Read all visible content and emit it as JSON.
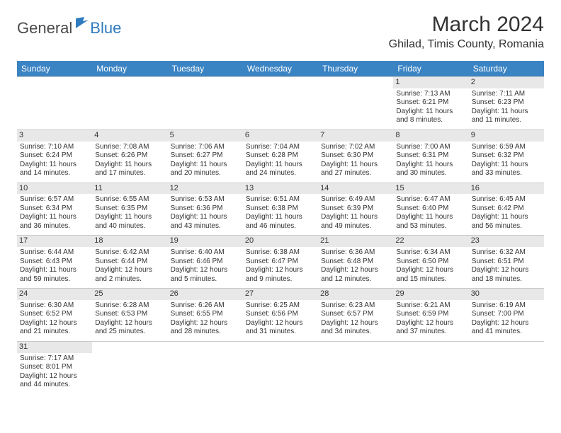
{
  "logo": {
    "part1": "General",
    "part2": "Blue"
  },
  "title": "March 2024",
  "location": "Ghilad, Timis County, Romania",
  "colors": {
    "header_bg": "#3b84c4",
    "header_fg": "#ffffff",
    "daynum_bg": "#e8e8e8",
    "border": "#c8c8c8",
    "logo_blue": "#2f7bbf",
    "logo_gray": "#4a4a4a"
  },
  "day_headers": [
    "Sunday",
    "Monday",
    "Tuesday",
    "Wednesday",
    "Thursday",
    "Friday",
    "Saturday"
  ],
  "weeks": [
    [
      {
        "n": "",
        "sr": "",
        "ss": "",
        "dl": ""
      },
      {
        "n": "",
        "sr": "",
        "ss": "",
        "dl": ""
      },
      {
        "n": "",
        "sr": "",
        "ss": "",
        "dl": ""
      },
      {
        "n": "",
        "sr": "",
        "ss": "",
        "dl": ""
      },
      {
        "n": "",
        "sr": "",
        "ss": "",
        "dl": ""
      },
      {
        "n": "1",
        "sr": "Sunrise: 7:13 AM",
        "ss": "Sunset: 6:21 PM",
        "dl": "Daylight: 11 hours and 8 minutes."
      },
      {
        "n": "2",
        "sr": "Sunrise: 7:11 AM",
        "ss": "Sunset: 6:23 PM",
        "dl": "Daylight: 11 hours and 11 minutes."
      }
    ],
    [
      {
        "n": "3",
        "sr": "Sunrise: 7:10 AM",
        "ss": "Sunset: 6:24 PM",
        "dl": "Daylight: 11 hours and 14 minutes."
      },
      {
        "n": "4",
        "sr": "Sunrise: 7:08 AM",
        "ss": "Sunset: 6:26 PM",
        "dl": "Daylight: 11 hours and 17 minutes."
      },
      {
        "n": "5",
        "sr": "Sunrise: 7:06 AM",
        "ss": "Sunset: 6:27 PM",
        "dl": "Daylight: 11 hours and 20 minutes."
      },
      {
        "n": "6",
        "sr": "Sunrise: 7:04 AM",
        "ss": "Sunset: 6:28 PM",
        "dl": "Daylight: 11 hours and 24 minutes."
      },
      {
        "n": "7",
        "sr": "Sunrise: 7:02 AM",
        "ss": "Sunset: 6:30 PM",
        "dl": "Daylight: 11 hours and 27 minutes."
      },
      {
        "n": "8",
        "sr": "Sunrise: 7:00 AM",
        "ss": "Sunset: 6:31 PM",
        "dl": "Daylight: 11 hours and 30 minutes."
      },
      {
        "n": "9",
        "sr": "Sunrise: 6:59 AM",
        "ss": "Sunset: 6:32 PM",
        "dl": "Daylight: 11 hours and 33 minutes."
      }
    ],
    [
      {
        "n": "10",
        "sr": "Sunrise: 6:57 AM",
        "ss": "Sunset: 6:34 PM",
        "dl": "Daylight: 11 hours and 36 minutes."
      },
      {
        "n": "11",
        "sr": "Sunrise: 6:55 AM",
        "ss": "Sunset: 6:35 PM",
        "dl": "Daylight: 11 hours and 40 minutes."
      },
      {
        "n": "12",
        "sr": "Sunrise: 6:53 AM",
        "ss": "Sunset: 6:36 PM",
        "dl": "Daylight: 11 hours and 43 minutes."
      },
      {
        "n": "13",
        "sr": "Sunrise: 6:51 AM",
        "ss": "Sunset: 6:38 PM",
        "dl": "Daylight: 11 hours and 46 minutes."
      },
      {
        "n": "14",
        "sr": "Sunrise: 6:49 AM",
        "ss": "Sunset: 6:39 PM",
        "dl": "Daylight: 11 hours and 49 minutes."
      },
      {
        "n": "15",
        "sr": "Sunrise: 6:47 AM",
        "ss": "Sunset: 6:40 PM",
        "dl": "Daylight: 11 hours and 53 minutes."
      },
      {
        "n": "16",
        "sr": "Sunrise: 6:45 AM",
        "ss": "Sunset: 6:42 PM",
        "dl": "Daylight: 11 hours and 56 minutes."
      }
    ],
    [
      {
        "n": "17",
        "sr": "Sunrise: 6:44 AM",
        "ss": "Sunset: 6:43 PM",
        "dl": "Daylight: 11 hours and 59 minutes."
      },
      {
        "n": "18",
        "sr": "Sunrise: 6:42 AM",
        "ss": "Sunset: 6:44 PM",
        "dl": "Daylight: 12 hours and 2 minutes."
      },
      {
        "n": "19",
        "sr": "Sunrise: 6:40 AM",
        "ss": "Sunset: 6:46 PM",
        "dl": "Daylight: 12 hours and 5 minutes."
      },
      {
        "n": "20",
        "sr": "Sunrise: 6:38 AM",
        "ss": "Sunset: 6:47 PM",
        "dl": "Daylight: 12 hours and 9 minutes."
      },
      {
        "n": "21",
        "sr": "Sunrise: 6:36 AM",
        "ss": "Sunset: 6:48 PM",
        "dl": "Daylight: 12 hours and 12 minutes."
      },
      {
        "n": "22",
        "sr": "Sunrise: 6:34 AM",
        "ss": "Sunset: 6:50 PM",
        "dl": "Daylight: 12 hours and 15 minutes."
      },
      {
        "n": "23",
        "sr": "Sunrise: 6:32 AM",
        "ss": "Sunset: 6:51 PM",
        "dl": "Daylight: 12 hours and 18 minutes."
      }
    ],
    [
      {
        "n": "24",
        "sr": "Sunrise: 6:30 AM",
        "ss": "Sunset: 6:52 PM",
        "dl": "Daylight: 12 hours and 21 minutes."
      },
      {
        "n": "25",
        "sr": "Sunrise: 6:28 AM",
        "ss": "Sunset: 6:53 PM",
        "dl": "Daylight: 12 hours and 25 minutes."
      },
      {
        "n": "26",
        "sr": "Sunrise: 6:26 AM",
        "ss": "Sunset: 6:55 PM",
        "dl": "Daylight: 12 hours and 28 minutes."
      },
      {
        "n": "27",
        "sr": "Sunrise: 6:25 AM",
        "ss": "Sunset: 6:56 PM",
        "dl": "Daylight: 12 hours and 31 minutes."
      },
      {
        "n": "28",
        "sr": "Sunrise: 6:23 AM",
        "ss": "Sunset: 6:57 PM",
        "dl": "Daylight: 12 hours and 34 minutes."
      },
      {
        "n": "29",
        "sr": "Sunrise: 6:21 AM",
        "ss": "Sunset: 6:59 PM",
        "dl": "Daylight: 12 hours and 37 minutes."
      },
      {
        "n": "30",
        "sr": "Sunrise: 6:19 AM",
        "ss": "Sunset: 7:00 PM",
        "dl": "Daylight: 12 hours and 41 minutes."
      }
    ],
    [
      {
        "n": "31",
        "sr": "Sunrise: 7:17 AM",
        "ss": "Sunset: 8:01 PM",
        "dl": "Daylight: 12 hours and 44 minutes."
      },
      {
        "n": "",
        "sr": "",
        "ss": "",
        "dl": ""
      },
      {
        "n": "",
        "sr": "",
        "ss": "",
        "dl": ""
      },
      {
        "n": "",
        "sr": "",
        "ss": "",
        "dl": ""
      },
      {
        "n": "",
        "sr": "",
        "ss": "",
        "dl": ""
      },
      {
        "n": "",
        "sr": "",
        "ss": "",
        "dl": ""
      },
      {
        "n": "",
        "sr": "",
        "ss": "",
        "dl": ""
      }
    ]
  ]
}
